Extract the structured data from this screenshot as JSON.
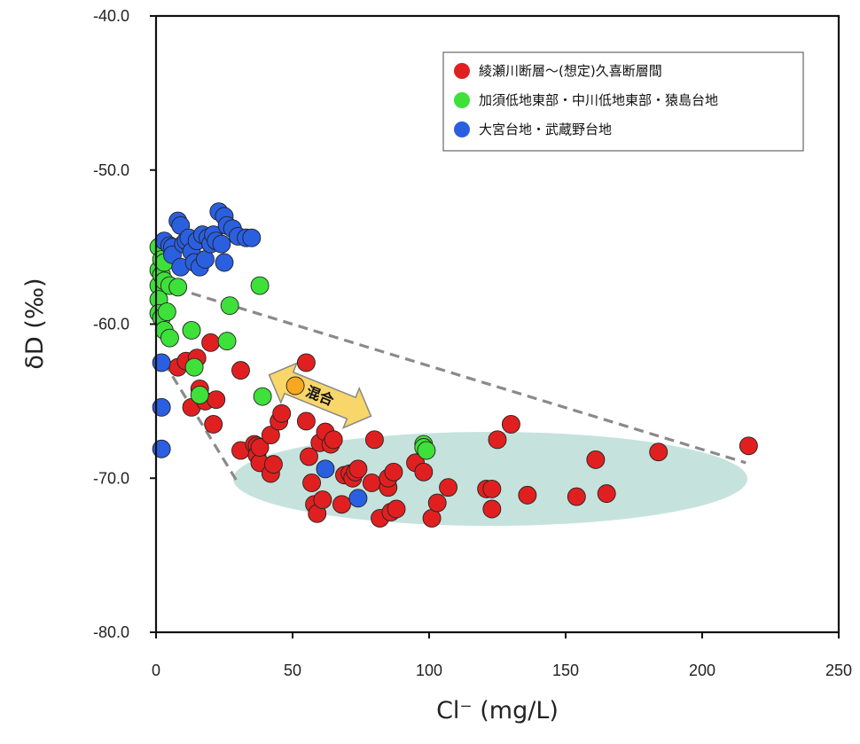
{
  "chart_data": {
    "type": "scatter",
    "xlabel": "Cl⁻ (mg/L)",
    "ylabel": "δD (‰)",
    "xlim": [
      0,
      250
    ],
    "ylim": [
      -80,
      -40
    ],
    "x_ticks": [
      "0",
      "50",
      "100",
      "150",
      "200",
      "250"
    ],
    "y_ticks": [
      "-40.0",
      "-50.0",
      "-60.0",
      "-70.0",
      "-80.0"
    ],
    "grid": false,
    "legend_position": "top-right",
    "annotation": "混合",
    "series": [
      {
        "name": "綾瀬川断層～(想定)久喜断層間",
        "color": "#e02020",
        "points": [
          [
            8,
            -62.8
          ],
          [
            11,
            -62.4
          ],
          [
            13,
            -65.4
          ],
          [
            15,
            -62.2
          ],
          [
            16,
            -64.2
          ],
          [
            18,
            -65.0
          ],
          [
            20,
            -61.2
          ],
          [
            21,
            -66.5
          ],
          [
            22,
            -64.9
          ],
          [
            31,
            -63.0
          ],
          [
            31,
            -68.2
          ],
          [
            36,
            -67.8
          ],
          [
            37,
            -67.9
          ],
          [
            37,
            -68.5
          ],
          [
            38,
            -69.0
          ],
          [
            38,
            -68.0
          ],
          [
            42,
            -67.2
          ],
          [
            42,
            -69.7
          ],
          [
            43,
            -69.1
          ],
          [
            45,
            -66.3
          ],
          [
            46,
            -65.8
          ],
          [
            55,
            -62.5
          ],
          [
            55,
            -66.3
          ],
          [
            56,
            -68.6
          ],
          [
            57,
            -70.3
          ],
          [
            58,
            -71.7
          ],
          [
            59,
            -72.3
          ],
          [
            60,
            -67.7
          ],
          [
            61,
            -71.4
          ],
          [
            62,
            -67.0
          ],
          [
            64,
            -67.8
          ],
          [
            65,
            -67.5
          ],
          [
            68,
            -71.7
          ],
          [
            69,
            -69.8
          ],
          [
            71,
            -69.7
          ],
          [
            72,
            -70.0
          ],
          [
            73,
            -69.6
          ],
          [
            74,
            -69.4
          ],
          [
            79,
            -70.3
          ],
          [
            80,
            -67.5
          ],
          [
            82,
            -72.6
          ],
          [
            85,
            -70.6
          ],
          [
            85,
            -70.0
          ],
          [
            86,
            -72.2
          ],
          [
            87,
            -69.6
          ],
          [
            88,
            -72.0
          ],
          [
            95,
            -69.0
          ],
          [
            98,
            -69.6
          ],
          [
            101,
            -72.6
          ],
          [
            103,
            -71.6
          ],
          [
            107,
            -70.6
          ],
          [
            121,
            -70.7
          ],
          [
            123,
            -70.7
          ],
          [
            123,
            -72.0
          ],
          [
            125,
            -67.5
          ],
          [
            130,
            -66.5
          ],
          [
            136,
            -71.1
          ],
          [
            154,
            -71.2
          ],
          [
            161,
            -68.8
          ],
          [
            165,
            -71.0
          ],
          [
            184,
            -68.3
          ],
          [
            217,
            -67.9
          ]
        ]
      },
      {
        "name": "加須低地東部・中川低地東部・猿島台地",
        "color": "#3ee03a",
        "points": [
          [
            1,
            -55.0
          ],
          [
            1,
            -56.5
          ],
          [
            1,
            -57.5
          ],
          [
            1,
            -58.4
          ],
          [
            1,
            -59.3
          ],
          [
            2,
            -55.8
          ],
          [
            2,
            -56.8
          ],
          [
            2,
            -59.6
          ],
          [
            3,
            -56.0
          ],
          [
            3,
            -57.2
          ],
          [
            3,
            -60.4
          ],
          [
            4,
            -59.2
          ],
          [
            5,
            -57.5
          ],
          [
            5,
            -60.9
          ],
          [
            8,
            -57.6
          ],
          [
            13,
            -60.4
          ],
          [
            14,
            -62.8
          ],
          [
            16,
            -64.6
          ],
          [
            26,
            -61.1
          ],
          [
            27,
            -58.8
          ],
          [
            38,
            -57.5
          ],
          [
            39,
            -64.7
          ],
          [
            98,
            -67.8
          ],
          [
            98,
            -68.0
          ],
          [
            99,
            -68.2
          ]
        ]
      },
      {
        "name": "大宮台地・武蔵野台地",
        "color": "#2a5fe0",
        "points": [
          [
            3,
            -54.6
          ],
          [
            5,
            -54.9
          ],
          [
            6,
            -55.0
          ],
          [
            6,
            -55.5
          ],
          [
            8,
            -53.3
          ],
          [
            9,
            -53.6
          ],
          [
            9,
            -56.3
          ],
          [
            10,
            -54.8
          ],
          [
            11,
            -54.6
          ],
          [
            12,
            -54.4
          ],
          [
            13,
            -55.3
          ],
          [
            14,
            -56.0
          ],
          [
            15,
            -54.6
          ],
          [
            16,
            -56.3
          ],
          [
            17,
            -54.2
          ],
          [
            18,
            -55.8
          ],
          [
            19,
            -54.4
          ],
          [
            20,
            -54.8
          ],
          [
            21,
            -54.2
          ],
          [
            22,
            -54.6
          ],
          [
            23,
            -52.7
          ],
          [
            24,
            -54.8
          ],
          [
            25,
            -53.0
          ],
          [
            25,
            -56.0
          ],
          [
            26,
            -53.6
          ],
          [
            28,
            -53.8
          ],
          [
            30,
            -54.3
          ],
          [
            33,
            -54.4
          ],
          [
            35,
            -54.4
          ],
          [
            2,
            -62.5
          ],
          [
            2,
            -65.4
          ],
          [
            2,
            -68.1
          ],
          [
            62,
            -69.4
          ],
          [
            74,
            -71.3
          ]
        ]
      },
      {
        "name": "",
        "color": "#f7a820",
        "points": [
          [
            51,
            -64.0
          ]
        ]
      }
    ],
    "guide_lines": [
      {
        "from": [
          13,
          -58.0
        ],
        "to": [
          216,
          -69.0
        ]
      },
      {
        "from": [
          3,
          -62.5
        ],
        "to": [
          30,
          -70.3
        ]
      }
    ]
  }
}
